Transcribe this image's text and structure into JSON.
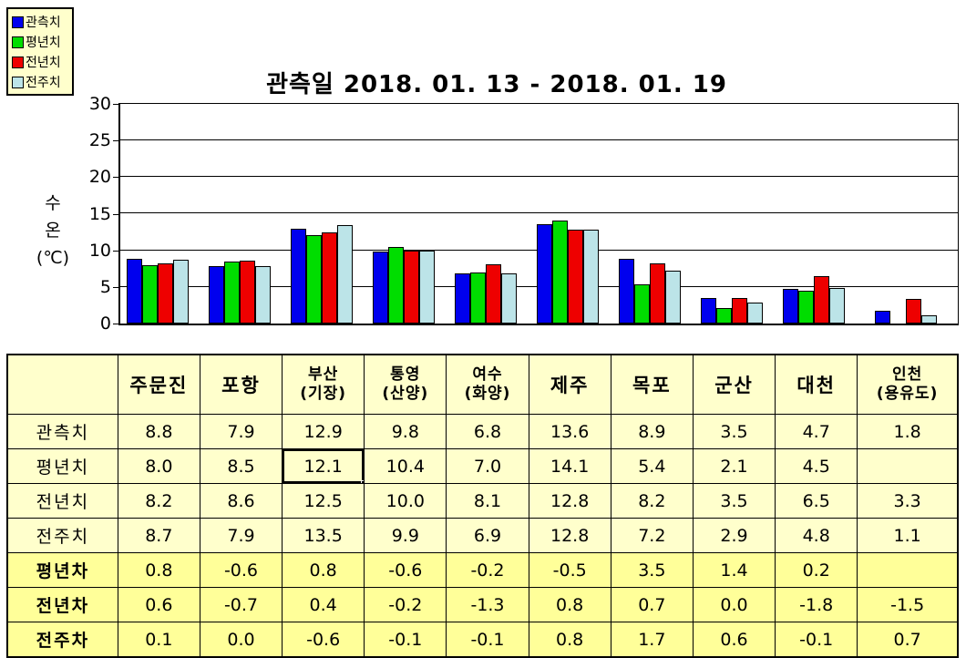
{
  "legend": {
    "items": [
      {
        "label": "관측치",
        "color": "#0000EE"
      },
      {
        "label": "평년치",
        "color": "#00DD00"
      },
      {
        "label": "전년치",
        "color": "#EE0000"
      },
      {
        "label": "전주치",
        "color": "#BCE4E8"
      }
    ]
  },
  "chart": {
    "title": "관측일 2018. 01. 13 - 2018. 01. 19",
    "y_axis_label": "수온(℃)",
    "y_axis_label_lines": "수\n온\n(℃)",
    "y_ticks": [
      30,
      25,
      20,
      15,
      10,
      5,
      0
    ]
  },
  "chart_data": {
    "type": "bar",
    "title": "관측일 2018. 01. 13 - 2018. 01. 19",
    "categories": [
      "주문진",
      "포항",
      "부산(기장)",
      "통영(산양)",
      "여수(화양)",
      "제주",
      "목포",
      "군산",
      "대천",
      "인천(용유도)"
    ],
    "series": [
      {
        "name": "관측치",
        "color": "#0000EE",
        "values": [
          8.8,
          7.9,
          12.9,
          9.8,
          6.8,
          13.6,
          8.9,
          3.5,
          4.7,
          1.8
        ]
      },
      {
        "name": "평년치",
        "color": "#00DD00",
        "values": [
          8.0,
          8.5,
          12.1,
          10.4,
          7.0,
          14.1,
          5.4,
          2.1,
          4.5,
          null
        ]
      },
      {
        "name": "전년치",
        "color": "#EE0000",
        "values": [
          8.2,
          8.6,
          12.5,
          10.0,
          8.1,
          12.8,
          8.2,
          3.5,
          6.5,
          3.3
        ]
      },
      {
        "name": "전주치",
        "color": "#BCE4E8",
        "values": [
          8.7,
          7.9,
          13.5,
          9.9,
          6.9,
          12.8,
          7.2,
          2.9,
          4.8,
          1.1
        ]
      }
    ],
    "ylabel": "수온(℃)",
    "ylim": [
      0,
      30
    ],
    "grid": true,
    "legend_position": "top-left"
  },
  "table": {
    "header_cells": [
      {
        "lines": [
          ""
        ],
        "size": "large"
      },
      {
        "lines": [
          "주문진"
        ],
        "size": "large"
      },
      {
        "lines": [
          "포항"
        ],
        "size": "large"
      },
      {
        "lines": [
          "부산",
          "(기장)"
        ],
        "size": "small"
      },
      {
        "lines": [
          "통영",
          "(산양)"
        ],
        "size": "small"
      },
      {
        "lines": [
          "여수",
          "(화양)"
        ],
        "size": "small"
      },
      {
        "lines": [
          "제주"
        ],
        "size": "large"
      },
      {
        "lines": [
          "목포"
        ],
        "size": "large"
      },
      {
        "lines": [
          "군산"
        ],
        "size": "large"
      },
      {
        "lines": [
          "대천"
        ],
        "size": "large"
      },
      {
        "lines": [
          "인천",
          "(용유도)"
        ],
        "size": "small"
      }
    ],
    "rows": [
      {
        "label": "관측치",
        "type": "value",
        "values": [
          "8.8",
          "7.9",
          "12.9",
          "9.8",
          "6.8",
          "13.6",
          "8.9",
          "3.5",
          "4.7",
          "1.8"
        ]
      },
      {
        "label": "평년치",
        "type": "value",
        "values": [
          "8.0",
          "8.5",
          "12.1",
          "10.4",
          "7.0",
          "14.1",
          "5.4",
          "2.1",
          "4.5",
          ""
        ]
      },
      {
        "label": "전년치",
        "type": "value",
        "values": [
          "8.2",
          "8.6",
          "12.5",
          "10.0",
          "8.1",
          "12.8",
          "8.2",
          "3.5",
          "6.5",
          "3.3"
        ]
      },
      {
        "label": "전주치",
        "type": "value",
        "values": [
          "8.7",
          "7.9",
          "13.5",
          "9.9",
          "6.9",
          "12.8",
          "7.2",
          "2.9",
          "4.8",
          "1.1"
        ]
      },
      {
        "label": "평년차",
        "type": "diff",
        "values": [
          "0.8",
          "-0.6",
          "0.8",
          "-0.6",
          "-0.2",
          "-0.5",
          "3.5",
          "1.4",
          "0.2",
          ""
        ]
      },
      {
        "label": "전년차",
        "type": "diff",
        "values": [
          "0.6",
          "-0.7",
          "0.4",
          "-0.2",
          "-1.3",
          "0.8",
          "0.7",
          "0.0",
          "-1.8",
          "-1.5"
        ]
      },
      {
        "label": "전주차",
        "type": "diff",
        "values": [
          "0.1",
          "0.0",
          "-0.6",
          "-0.1",
          "-0.1",
          "0.8",
          "1.7",
          "0.6",
          "-0.1",
          "0.7"
        ]
      }
    ],
    "selected_cell": {
      "row_index": 1,
      "col_index": 2,
      "value": "12.1"
    }
  },
  "colors": {
    "series": [
      "#0000EE",
      "#00DD00",
      "#EE0000",
      "#BCE4E8"
    ],
    "table_bg_value": "#FFFFCC",
    "table_bg_diff": "#FFFF99",
    "legend_bg": "#FFFFCC",
    "grid": "#000000"
  }
}
